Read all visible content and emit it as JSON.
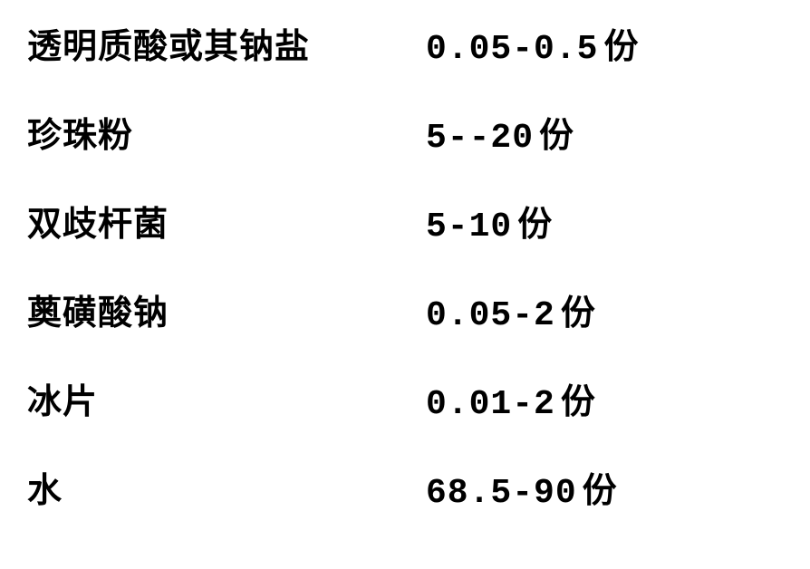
{
  "table": {
    "rows": [
      {
        "label": "透明质酸或其钠盐",
        "value": "0.05-0.5",
        "unit": "份"
      },
      {
        "label": "珍珠粉",
        "value": "5--20",
        "unit": "份"
      },
      {
        "label": "双歧杆菌",
        "value": "5-10",
        "unit": "份"
      },
      {
        "label": "薁磺酸钠",
        "value": "0.05-2",
        "unit": "份"
      },
      {
        "label": "冰片",
        "value": "0.01-2",
        "unit": "份"
      },
      {
        "label": "水",
        "value": "68.5-90",
        "unit": "份"
      }
    ],
    "label_fontsize": 38,
    "value_fontsize": 38,
    "text_color": "#000000",
    "background_color": "#ffffff",
    "row_spacing": 42,
    "label_column_width": 440
  }
}
